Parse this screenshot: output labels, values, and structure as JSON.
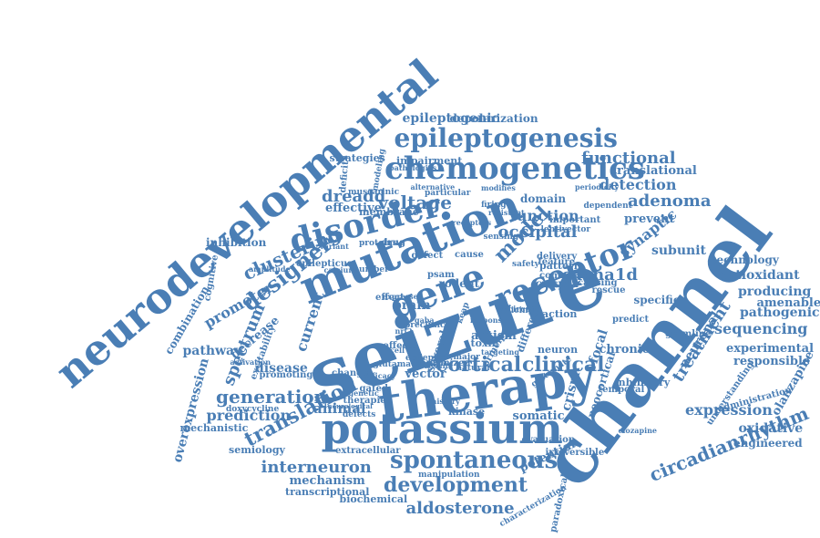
{
  "colors": {
    "word": "#4a7eb5",
    "background": "#ffffff"
  },
  "words": [
    "neurodevelopmental",
    "seizure",
    "channel",
    "therapy",
    "potassium",
    "mutation",
    "chemogenetics",
    "epileptogenesis",
    "disorder",
    "receptor",
    "gene",
    "cortical",
    "clinical",
    "spontaneous",
    "development",
    "aldosterone",
    "translation",
    "circadianrhythm",
    "designer",
    "generation",
    "interneuron",
    "expression",
    "spectrum",
    "model",
    "clustering",
    "promoter",
    "current",
    "function",
    "voltage",
    "dreadd",
    "occipital",
    "cacna1d",
    "adenoma",
    "functional",
    "detection",
    "translational",
    "epileptogenic",
    "depolarization",
    "strategies",
    "impairment",
    "effective",
    "inhibition",
    "membrane",
    "domain",
    "synaptic",
    "prevent",
    "subunit",
    "technology",
    "antioxidant",
    "producing",
    "amenable",
    "pathogenic",
    "sequencing",
    "experimental",
    "responsible",
    "treatment",
    "neuronal",
    "olanzapine",
    "oxidative",
    "engineered",
    "administration",
    "understanding",
    "chronic",
    "focal",
    "neuron",
    "crispr",
    "crispra",
    "autism",
    "somatic",
    "toxin",
    "animal",
    "disease",
    "pathway",
    "decrease",
    "combination",
    "overexpression",
    "prediction",
    "mechanistic",
    "semiology",
    "extracellular",
    "mechanism",
    "transcriptional",
    "biochemical",
    "manipulation",
    "potential",
    "paradoxical",
    "characterization",
    "irreversible",
    "neocortical",
    "specific",
    "predict",
    "action",
    "brain",
    "effect",
    "defect",
    "cause",
    "pattern",
    "vector",
    "major",
    "result",
    "change",
    "therapies",
    "gated",
    "genetic",
    "neurological",
    "doxycycline",
    "promoting",
    "activation",
    "excitability",
    "cognitive",
    "amplitude",
    "epilepticus",
    "calcium",
    "number",
    "variant",
    "muscarinic",
    "alternative",
    "particular",
    "modifies",
    "important",
    "periodicity",
    "dependent",
    "lentivector",
    "sensing",
    "feature",
    "common",
    "rodent",
    "psam",
    "keap",
    "glutamate",
    "inhibitory",
    "temporal",
    "germline",
    "clozapine",
    "evaluation",
    "several",
    "optimized",
    "drug",
    "rescue",
    "causing",
    "different",
    "principal",
    "delivery",
    "kinase",
    "effects",
    "epileptic",
    "natural",
    "defects",
    "proteins",
    "firing",
    "deficit",
    "modeling",
    "pathologies",
    "preclinical",
    "history",
    "circuit",
    "safety",
    "splicing",
    "glutamatergic",
    "cell",
    "targeting",
    "resistant",
    "receptors",
    "nrf2",
    "gaba",
    "response",
    "efficacy",
    "expressed",
    "knockout",
    "mouse"
  ]
}
